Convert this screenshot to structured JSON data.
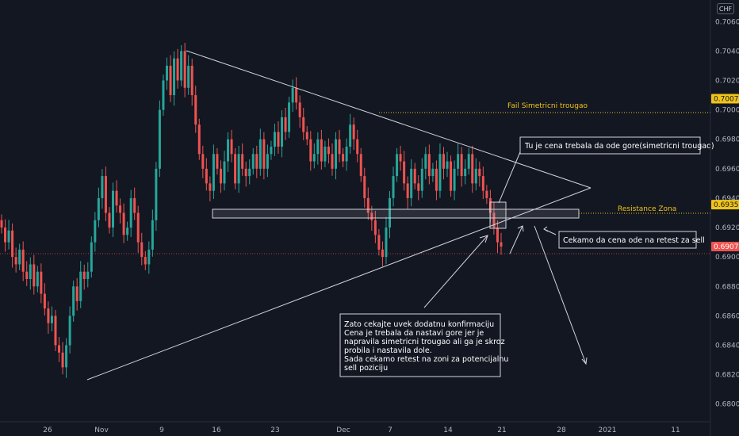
{
  "currency_badge": "CHF",
  "chart_data": {
    "type": "candlestick",
    "colors": {
      "up": "#26a69a",
      "down": "#ef5350",
      "line": "#d1d4dc",
      "gold": "#f0c419",
      "bg": "#131722"
    },
    "y_axis": {
      "ticks": [
        "0.70600",
        "0.70400",
        "0.70200",
        "0.70000",
        "0.69800",
        "0.69600",
        "0.69400",
        "0.69200",
        "0.69000",
        "0.68800",
        "0.68600",
        "0.68400",
        "0.68200",
        "0.68000"
      ],
      "ylim": [
        0.6788,
        0.7072
      ]
    },
    "x_axis": {
      "ticks": [
        "26",
        "Nov",
        "9",
        "16",
        "23",
        "Dec",
        "7",
        "14",
        "21",
        "28",
        "2021",
        "11"
      ]
    },
    "price_tags": [
      {
        "label": "0.70076",
        "value": 0.70076,
        "bg": "#f0c419",
        "fg": "#131722"
      },
      {
        "label": "0.69356",
        "value": 0.69356,
        "bg": "#f0c419",
        "fg": "#131722"
      },
      {
        "label": "0.69071",
        "value": 0.69071,
        "bg": "#ef5350",
        "fg": "#ffffff"
      }
    ],
    "horizontal_levels": [
      {
        "label": "Fail Simetricni trougao",
        "value": 0.70076
      },
      {
        "label": "Resistance Zona",
        "value": 0.69356
      }
    ],
    "annotations": {
      "top_note": "Tu je cena trebala da ode gore(simetricni trougao)",
      "right_note": "Cekamo da cena ode na retest za sell",
      "bottom_note": [
        "Zato cekajte uvek dodatnu konfirmaciju",
        "Cena je trebala da nastavi gore jer je",
        "napravila simetricni trougao ali ga je skroz",
        "probila i nastavila dole.",
        "Sada cekamo retest na zoni za potencijalnu",
        "sell poziciju"
      ]
    },
    "price_path": [
      [
        0.692,
        0.691,
        0.6918,
        0.69,
        0.6895,
        0.6905,
        0.689,
        0.6885,
        0.6895,
        0.688,
        0.689,
        0.6875,
        0.6865,
        0.6855,
        0.686,
        0.684,
        0.6835,
        0.6825,
        0.684,
        0.686,
        0.688,
        0.687,
        0.689,
        0.6885,
        0.689,
        0.691,
        0.6925,
        0.694,
        0.6955,
        0.693,
        0.692,
        0.6945,
        0.6935,
        0.693,
        0.6915,
        0.692,
        0.694,
        0.693,
        0.691,
        0.69,
        0.6895,
        0.6905,
        0.6925,
        0.696,
        0.7,
        0.702,
        0.703,
        0.701,
        0.7035,
        0.702,
        0.704,
        0.7015,
        0.703,
        0.701,
        0.699,
        0.697,
        0.696,
        0.695,
        0.6945,
        0.697,
        0.696,
        0.695,
        0.6965,
        0.698,
        0.697,
        0.695,
        0.697,
        0.696,
        0.6955,
        0.696,
        0.697,
        0.696,
        0.698,
        0.696,
        0.697,
        0.6975,
        0.6985,
        0.6975,
        0.6995,
        0.6985,
        0.7005,
        0.7015,
        0.7005,
        0.6995,
        0.6985,
        0.698,
        0.6965,
        0.697,
        0.698,
        0.6965,
        0.6975,
        0.697,
        0.696,
        0.698,
        0.697,
        0.6965,
        0.6975,
        0.699,
        0.698,
        0.697,
        0.6955,
        0.694,
        0.693,
        0.6925,
        0.6915,
        0.6905,
        0.69,
        0.692,
        0.694,
        0.6955,
        0.697,
        0.6965,
        0.695,
        0.694,
        0.696,
        0.695,
        0.6945,
        0.696,
        0.697,
        0.6955,
        0.696,
        0.6945,
        0.697,
        0.696,
        0.6965,
        0.6945,
        0.696,
        0.697,
        0.6955,
        0.696,
        0.697,
        0.695,
        0.696,
        0.6955,
        0.6945,
        0.694,
        0.693,
        0.692,
        0.691,
        0.69071
      ],
      [
        0.693,
        0.6915,
        0.6925,
        0.6905,
        0.6899,
        0.6908,
        0.6894,
        0.689,
        0.69,
        0.6885,
        0.6894,
        0.688,
        0.687,
        0.686,
        0.6865,
        0.6845,
        0.684,
        0.683,
        0.6845,
        0.6865,
        0.6885,
        0.6875,
        0.6895,
        0.689,
        0.6895,
        0.6915,
        0.693,
        0.6945,
        0.696,
        0.6935,
        0.6925,
        0.695,
        0.694,
        0.6935,
        0.692,
        0.6925,
        0.6945,
        0.6935,
        0.6915,
        0.6905,
        0.69,
        0.691,
        0.693,
        0.6965,
        0.7005,
        0.7025,
        0.7035,
        0.7015,
        0.704,
        0.7025,
        0.7045,
        0.702,
        0.7035,
        0.7015,
        0.6995,
        0.6975,
        0.6965,
        0.6955,
        0.695,
        0.6975,
        0.6965,
        0.6955,
        0.697,
        0.6985,
        0.6975,
        0.6955,
        0.6975,
        0.6965,
        0.696,
        0.6965,
        0.6975,
        0.6965,
        0.6985,
        0.6965,
        0.6975,
        0.698,
        0.699,
        0.698,
        0.7,
        0.699,
        0.701,
        0.702,
        0.701,
        0.7,
        0.699,
        0.6985,
        0.697,
        0.6975,
        0.6985,
        0.697,
        0.698,
        0.6975,
        0.6965,
        0.6985,
        0.6975,
        0.697,
        0.698,
        0.6995,
        0.6985,
        0.6975,
        0.696,
        0.6945,
        0.6935,
        0.693,
        0.692,
        0.691,
        0.6905,
        0.6925,
        0.6945,
        0.696,
        0.6975,
        0.697,
        0.6955,
        0.6945,
        0.6965,
        0.6955,
        0.695,
        0.6965,
        0.6975,
        0.696,
        0.6965,
        0.695,
        0.6975,
        0.6965,
        0.697,
        0.695,
        0.6965,
        0.6975,
        0.696,
        0.6965,
        0.6975,
        0.6955,
        0.6965,
        0.696,
        0.695,
        0.6945,
        0.6935,
        0.6925,
        0.6915,
        0.6912
      ]
    ]
  }
}
